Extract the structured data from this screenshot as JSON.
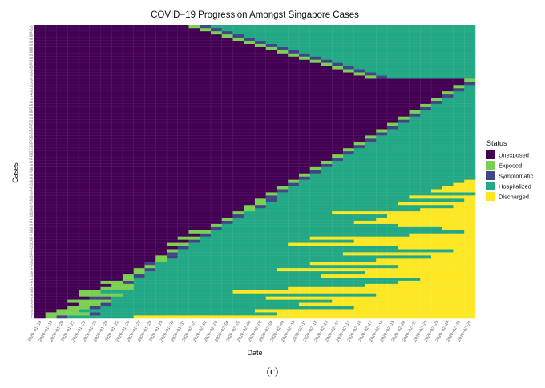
{
  "chart_data": {
    "type": "heatmap",
    "title": "COVID−19 Progression Amongst Singapore Cases",
    "xlabel": "Date",
    "ylabel": "Cases",
    "caption": "(c)",
    "x": [
      "2020−01−18",
      "2020−01−19",
      "2020−01−20",
      "2020−01−21",
      "2020−01−22",
      "2020−01−23",
      "2020−01−24",
      "2020−01−25",
      "2020−01−26",
      "2020−01−27",
      "2020−01−28",
      "2020−01−29",
      "2020−01−30",
      "2020−01−31",
      "2020−02−01",
      "2020−02−02",
      "2020−02−03",
      "2020−02−04",
      "2020−02−05",
      "2020−02−06",
      "2020−02−07",
      "2020−02−08",
      "2020−02−09",
      "2020−02−10",
      "2020−02−11",
      "2020−02−12",
      "2020−02−13",
      "2020−02−14",
      "2020−02−15",
      "2020−02−16",
      "2020−02−17",
      "2020−02−18",
      "2020−02−19",
      "2020−02−20",
      "2020−02−21",
      "2020−02−22",
      "2020−02−23",
      "2020−02−24",
      "2020−02−25",
      "2020−02−26"
    ],
    "y_range": [
      1,
      93
    ],
    "legend_title": "Status",
    "legend": [
      {
        "label": "Unexposed",
        "color": "#440154"
      },
      {
        "label": "Exposed",
        "color": "#7AD151"
      },
      {
        "label": "Symptomatic",
        "color": "#414487"
      },
      {
        "label": "Hospitalized",
        "color": "#22A884"
      },
      {
        "label": "Discharged",
        "color": "#FDE725"
      }
    ],
    "grid": true,
    "legend_position": "right",
    "cases": [
      [
        1,
        2,
        3,
        9
      ],
      [
        1,
        5,
        6,
        22
      ],
      [
        2,
        4,
        4,
        20
      ],
      [
        3,
        5,
        6,
        29
      ],
      [
        4,
        6,
        7,
        24
      ],
      [
        3,
        7,
        7,
        27
      ],
      [
        5,
        5,
        7,
        21
      ],
      [
        4,
        8,
        8,
        31
      ],
      [
        4,
        6,
        6,
        18
      ],
      [
        6,
        9,
        9,
        23
      ],
      [
        7,
        9,
        9,
        30
      ],
      [
        6,
        8,
        9,
        33
      ],
      [
        8,
        9,
        9,
        35
      ],
      [
        8,
        9,
        10,
        26
      ],
      [
        9,
        10,
        10,
        30
      ],
      [
        9,
        10,
        11,
        22
      ],
      [
        10,
        11,
        11,
        33
      ],
      [
        10,
        10,
        11,
        25
      ],
      [
        11,
        12,
        12,
        31
      ],
      [
        11,
        12,
        13,
        36
      ],
      [
        12,
        12,
        13,
        28
      ],
      [
        12,
        13,
        13,
        38
      ],
      [
        13,
        13,
        14,
        33
      ],
      [
        12,
        14,
        14,
        23
      ],
      [
        14,
        14,
        15,
        29
      ],
      [
        13,
        15,
        15,
        25
      ],
      [
        15,
        15,
        16,
        34
      ],
      [
        14,
        16,
        16,
        39
      ],
      [
        16,
        16,
        17,
        37
      ],
      [
        16,
        17,
        17,
        33
      ],
      [
        17,
        17,
        18,
        29
      ],
      [
        17,
        18,
        18,
        31
      ],
      [
        18,
        18,
        19,
        32
      ],
      [
        18,
        19,
        19,
        27
      ],
      [
        19,
        20,
        20,
        35
      ],
      [
        19,
        20,
        21,
        38
      ],
      [
        20,
        21,
        21,
        33
      ],
      [
        20,
        21,
        22,
        39
      ],
      [
        21,
        21,
        22,
        34
      ],
      [
        21,
        22,
        22,
        40
      ],
      [
        22,
        22,
        23,
        36
      ],
      [
        22,
        23,
        23,
        37
      ],
      [
        23,
        23,
        24,
        38
      ],
      [
        23,
        24,
        24,
        39
      ],
      [
        24,
        24,
        25,
        40
      ],
      [
        24,
        25,
        25,
        40
      ],
      [
        25,
        25,
        26,
        40
      ],
      [
        25,
        26,
        26,
        40
      ],
      [
        26,
        26,
        27,
        40
      ],
      [
        26,
        27,
        27,
        40
      ],
      [
        27,
        27,
        28,
        40
      ],
      [
        27,
        28,
        28,
        40
      ],
      [
        28,
        28,
        29,
        40
      ],
      [
        28,
        29,
        29,
        40
      ],
      [
        29,
        29,
        30,
        40
      ],
      [
        29,
        30,
        30,
        40
      ],
      [
        30,
        30,
        31,
        40
      ],
      [
        30,
        31,
        31,
        40
      ],
      [
        31,
        31,
        32,
        40
      ],
      [
        31,
        32,
        32,
        40
      ],
      [
        32,
        32,
        33,
        40
      ],
      [
        32,
        33,
        33,
        40
      ],
      [
        33,
        33,
        34,
        40
      ],
      [
        33,
        34,
        34,
        40
      ],
      [
        34,
        34,
        35,
        40
      ],
      [
        34,
        35,
        35,
        40
      ],
      [
        35,
        35,
        36,
        40
      ],
      [
        35,
        36,
        36,
        40
      ],
      [
        36,
        36,
        37,
        40
      ],
      [
        36,
        37,
        37,
        40
      ],
      [
        37,
        37,
        38,
        40
      ],
      [
        37,
        38,
        38,
        40
      ],
      [
        38,
        38,
        39,
        40
      ],
      [
        38,
        39,
        39,
        40
      ],
      [
        39,
        39,
        40,
        40
      ],
      [
        39,
        40,
        40,
        40
      ],
      [
        30,
        31,
        32,
        40
      ],
      [
        29,
        30,
        31,
        40
      ],
      [
        28,
        29,
        30,
        40
      ],
      [
        27,
        28,
        29,
        40
      ],
      [
        26,
        27,
        28,
        40
      ],
      [
        25,
        26,
        27,
        40
      ],
      [
        24,
        25,
        26,
        40
      ],
      [
        23,
        24,
        25,
        40
      ],
      [
        22,
        23,
        24,
        40
      ],
      [
        21,
        22,
        23,
        40
      ],
      [
        20,
        21,
        22,
        40
      ],
      [
        19,
        20,
        21,
        40
      ],
      [
        18,
        19,
        20,
        40
      ],
      [
        17,
        18,
        19,
        40
      ],
      [
        16,
        17,
        18,
        40
      ],
      [
        15,
        16,
        17,
        40
      ],
      [
        14,
        15,
        16,
        40
      ]
    ]
  }
}
